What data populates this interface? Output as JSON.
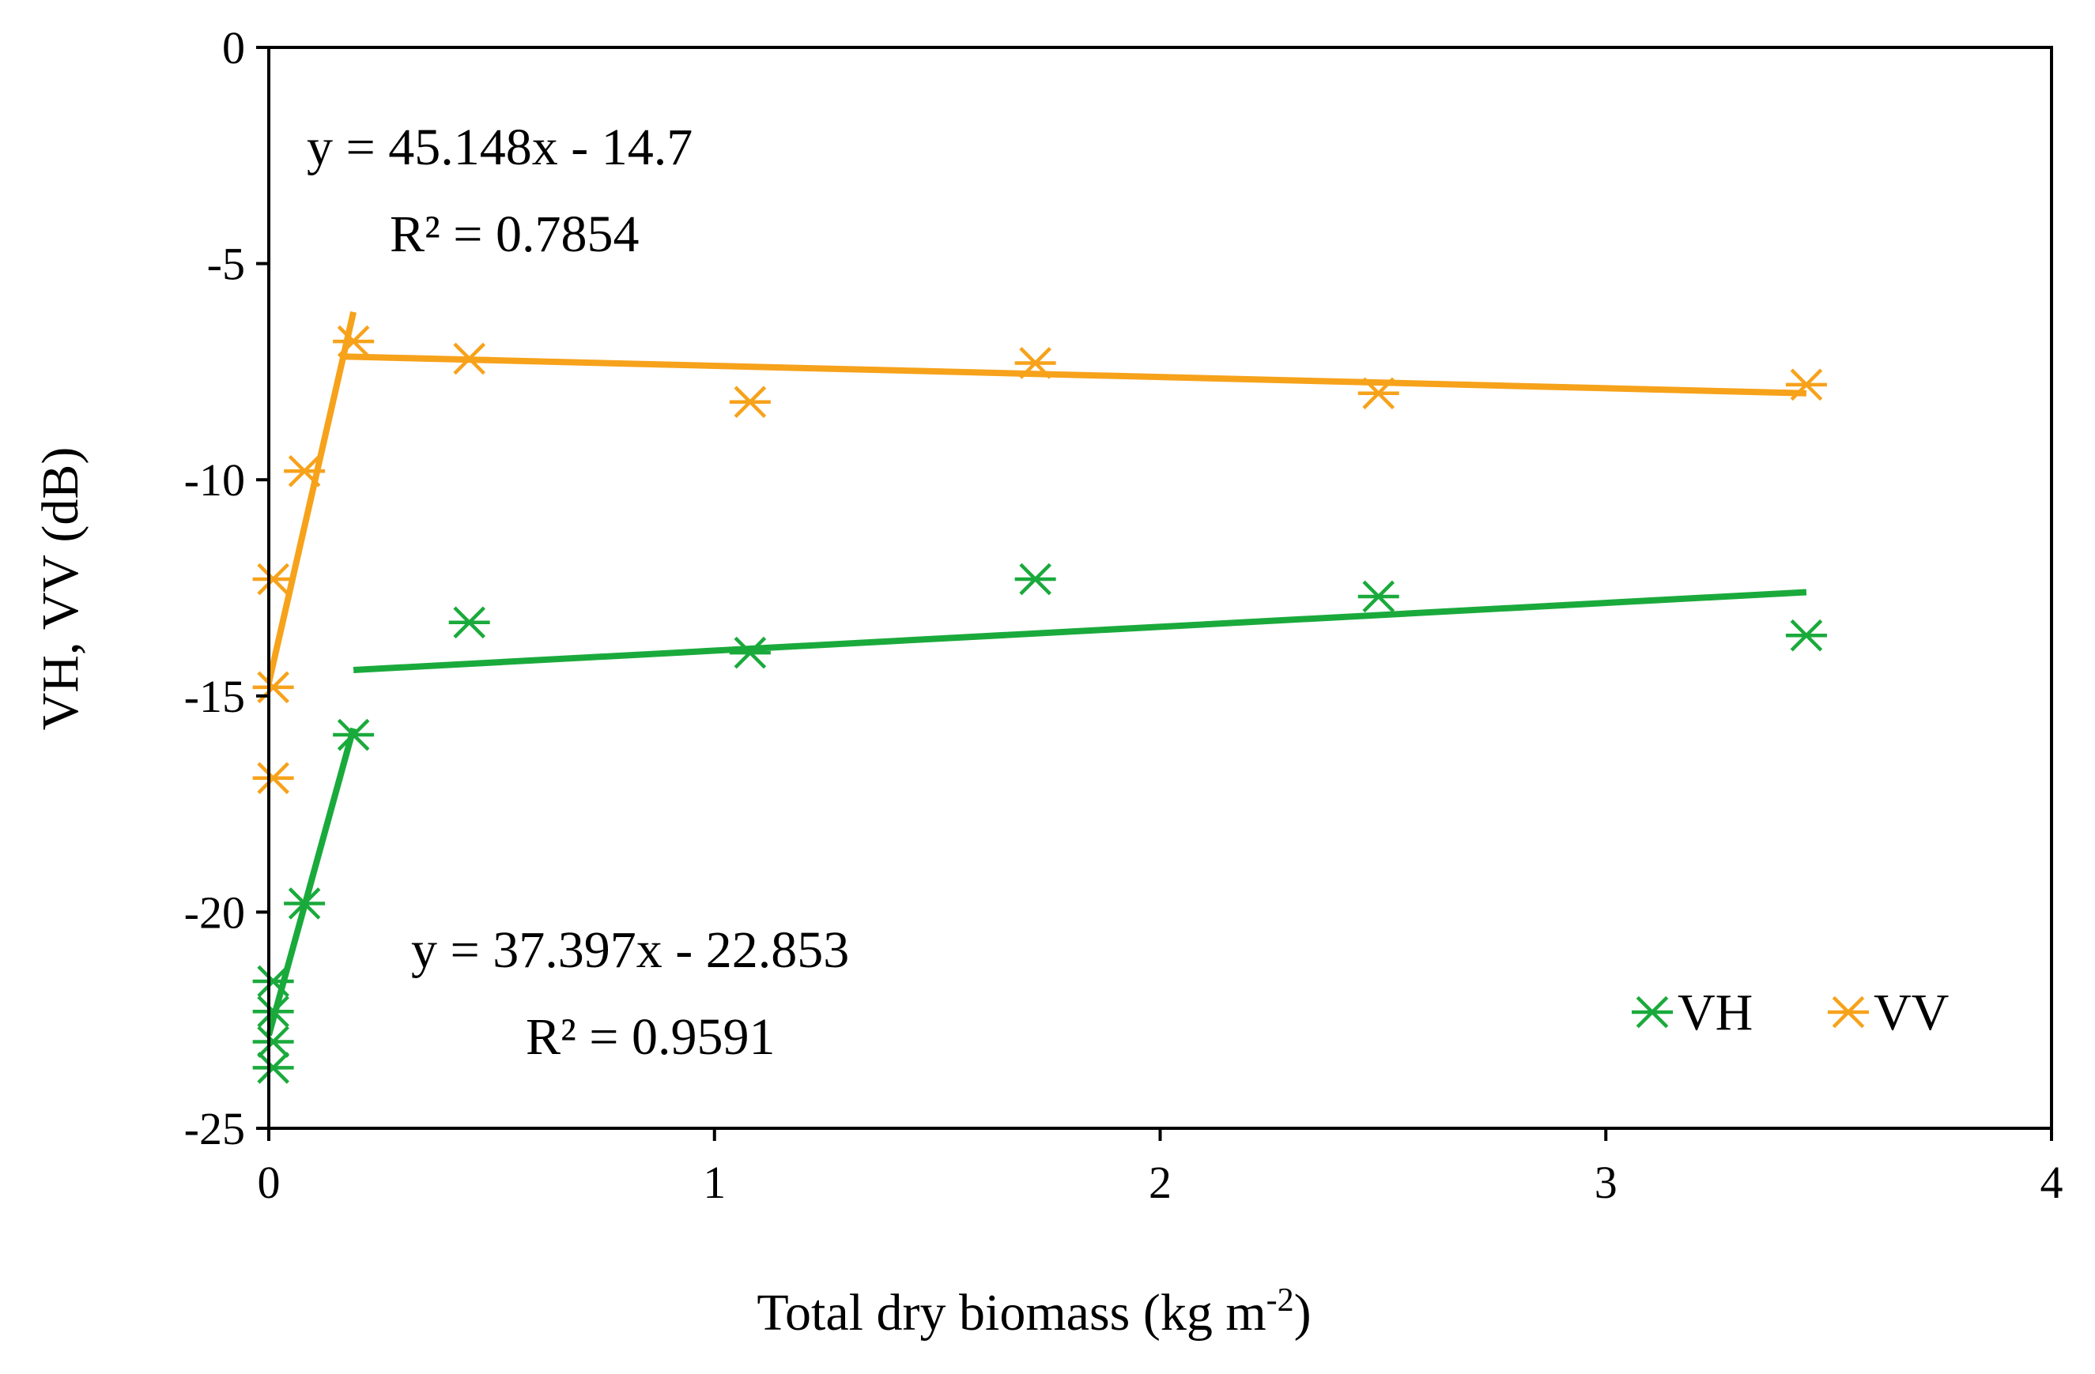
{
  "chart_data": {
    "type": "scatter",
    "title": "",
    "xlabel": "Total dry biomass (kg m⁻²)",
    "xlabel_main": "Total dry biomass (kg m",
    "xlabel_exp": "-2",
    "xlabel_close": ")",
    "ylabel": "VH, VV (dB)",
    "xlim": [
      0,
      4
    ],
    "ylim": [
      -25,
      0
    ],
    "xticks": [
      0,
      1,
      2,
      3,
      4
    ],
    "yticks": [
      0,
      -5,
      -10,
      -15,
      -20,
      -25
    ],
    "grid": false,
    "legend_position": "bottom-right",
    "series": [
      {
        "name": "VH",
        "color": "#1aaa3c",
        "marker": "asterisk",
        "points": [
          [
            0.01,
            -21.6
          ],
          [
            0.01,
            -22.3
          ],
          [
            0.01,
            -23.0
          ],
          [
            0.01,
            -23.6
          ],
          [
            0.08,
            -19.8
          ],
          [
            0.19,
            -15.9
          ],
          [
            0.45,
            -13.3
          ],
          [
            1.08,
            -14.0
          ],
          [
            1.72,
            -12.3
          ],
          [
            2.49,
            -12.7
          ],
          [
            3.45,
            -13.6
          ]
        ],
        "fit_lines": [
          {
            "equation": "y = 37.397x - 22.853",
            "r2": "R² = 0.9591",
            "x": [
              0.0,
              0.19
            ],
            "y": [
              -22.85,
              -15.75
            ]
          },
          {
            "x": [
              0.19,
              3.45
            ],
            "y": [
              -14.4,
              -12.6
            ]
          }
        ]
      },
      {
        "name": "VV",
        "color": "#f7a21b",
        "marker": "asterisk",
        "points": [
          [
            0.01,
            -12.3
          ],
          [
            0.01,
            -14.8
          ],
          [
            0.01,
            -16.9
          ],
          [
            0.08,
            -9.8
          ],
          [
            0.19,
            -6.8
          ],
          [
            0.45,
            -7.2
          ],
          [
            1.08,
            -8.2
          ],
          [
            1.72,
            -7.3
          ],
          [
            2.49,
            -8.0
          ],
          [
            3.45,
            -7.8
          ]
        ],
        "fit_lines": [
          {
            "equation": "y = 45.148x - 14.7",
            "r2": "R² = 0.7854",
            "x": [
              0.0,
              0.19
            ],
            "y": [
              -14.7,
              -6.12
            ]
          },
          {
            "x": [
              0.17,
              3.45
            ],
            "y": [
              -7.15,
              -8.0
            ]
          }
        ]
      }
    ],
    "annotations": [
      {
        "text": "y = 45.148x - 14.7",
        "position": "upper-left"
      },
      {
        "text": "R² = 0.7854",
        "position": "upper-left"
      },
      {
        "text": "y = 37.397x - 22.853",
        "position": "lower-left"
      },
      {
        "text": "R² = 0.9591",
        "position": "lower-left"
      }
    ]
  }
}
